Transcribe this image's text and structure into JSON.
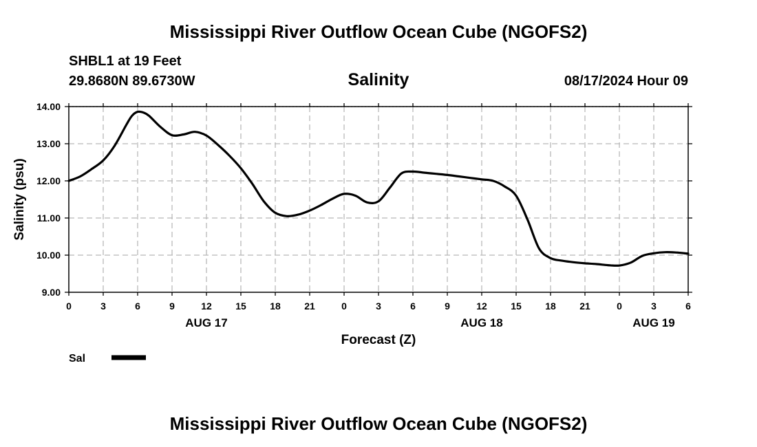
{
  "page": {
    "top_title": "Mississippi River Outflow Ocean Cube (NGOFS2)",
    "bottom_title": "Mississippi River Outflow Ocean Cube (NGOFS2)",
    "station": "SHBL1 at 19 Feet",
    "coords": "29.8680N  89.6730W",
    "timestamp": "08/17/2024 Hour 09"
  },
  "chart_data": {
    "type": "line",
    "title": "Salinity",
    "xlabel": "Forecast (Z)",
    "ylabel": "Salinity (psu)",
    "xlim": [
      0,
      54
    ],
    "ylim": [
      9.0,
      14.0
    ],
    "grid": true,
    "x_tick_labels": [
      "0",
      "3",
      "6",
      "9",
      "12",
      "15",
      "18",
      "21",
      "0",
      "3",
      "6",
      "9",
      "12",
      "15",
      "18",
      "21",
      "0",
      "3",
      "6"
    ],
    "y_tick_labels": [
      "9.00",
      "10.00",
      "11.00",
      "12.00",
      "13.00",
      "14.00"
    ],
    "date_labels": [
      {
        "label": "AUG 17",
        "hour": 12
      },
      {
        "label": "AUG 18",
        "hour": 36
      },
      {
        "label": "AUG 19",
        "hour": 51
      }
    ],
    "legend": [
      {
        "name": "Sal",
        "color": "#000000"
      }
    ],
    "series": [
      {
        "name": "Sal",
        "color": "#000000",
        "x": [
          0,
          1,
          2,
          3,
          4,
          5,
          5.5,
          6,
          6.5,
          7,
          8,
          9,
          10,
          11,
          12,
          13,
          14,
          15,
          16,
          17,
          18,
          19,
          20,
          21,
          22,
          23,
          24,
          25,
          26,
          27,
          28,
          29,
          30,
          31,
          32,
          33,
          34,
          35,
          36,
          37,
          38,
          39,
          40,
          41,
          42,
          43,
          44,
          45,
          46,
          47,
          48,
          49,
          50,
          51,
          52,
          53,
          54
        ],
        "y": [
          12.0,
          12.12,
          12.32,
          12.55,
          12.95,
          13.5,
          13.75,
          13.86,
          13.84,
          13.75,
          13.45,
          13.23,
          13.25,
          13.32,
          13.22,
          12.97,
          12.68,
          12.34,
          11.92,
          11.45,
          11.14,
          11.05,
          11.09,
          11.2,
          11.35,
          11.52,
          11.65,
          11.6,
          11.42,
          11.45,
          11.82,
          12.2,
          12.25,
          12.22,
          12.19,
          12.16,
          12.12,
          12.08,
          12.04,
          12.0,
          11.85,
          11.6,
          10.95,
          10.18,
          9.92,
          9.85,
          9.81,
          9.78,
          9.76,
          9.73,
          9.72,
          9.8,
          9.98,
          10.05,
          10.08,
          10.07,
          10.04
        ]
      }
    ]
  }
}
